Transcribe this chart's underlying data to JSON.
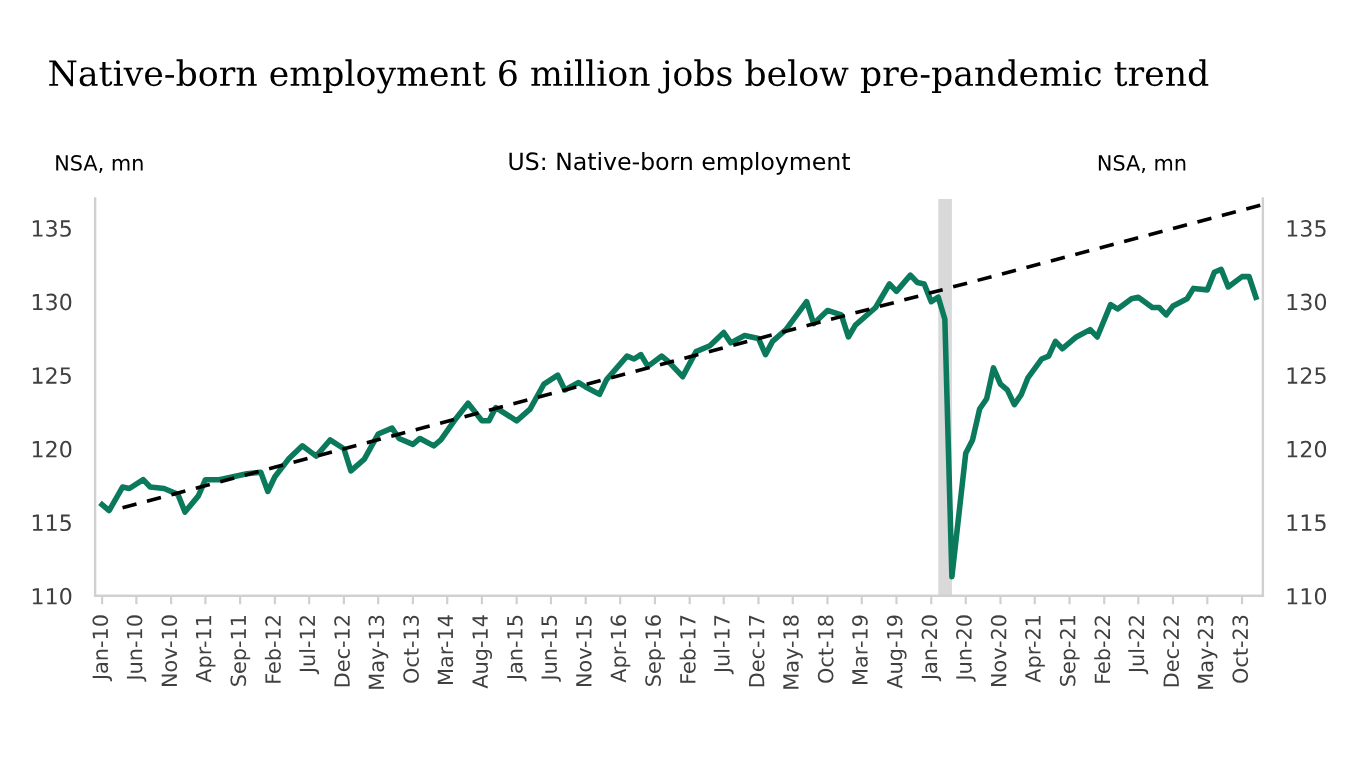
{
  "chart_data": {
    "type": "line",
    "title": "Native-born employment 6 million jobs below pre-pandemic trend",
    "subtitle": "US: Native-born employment",
    "ylabel": "NSA, mn",
    "y2label": "NSA, mn",
    "xlim": [
      "2009-12",
      "2024-01"
    ],
    "xticks": [
      {
        "value": "2010-01",
        "label": "Jan-10"
      },
      {
        "value": "2010-06",
        "label": "Jun-10"
      },
      {
        "value": "2010-11",
        "label": "Nov-10"
      },
      {
        "value": "2011-04",
        "label": "Apr-11"
      },
      {
        "value": "2011-09",
        "label": "Sep-11"
      },
      {
        "value": "2012-02",
        "label": "Feb-12"
      },
      {
        "value": "2012-07",
        "label": "Jul-12"
      },
      {
        "value": "2012-12",
        "label": "Dec-12"
      },
      {
        "value": "2013-05",
        "label": "May-13"
      },
      {
        "value": "2013-10",
        "label": "Oct-13"
      },
      {
        "value": "2014-03",
        "label": "Mar-14"
      },
      {
        "value": "2014-08",
        "label": "Aug-14"
      },
      {
        "value": "2015-01",
        "label": "Jan-15"
      },
      {
        "value": "2015-06",
        "label": "Jun-15"
      },
      {
        "value": "2015-11",
        "label": "Nov-15"
      },
      {
        "value": "2016-04",
        "label": "Apr-16"
      },
      {
        "value": "2016-09",
        "label": "Sep-16"
      },
      {
        "value": "2017-02",
        "label": "Feb-17"
      },
      {
        "value": "2017-07",
        "label": "Jul-17"
      },
      {
        "value": "2017-12",
        "label": "Dec-17"
      },
      {
        "value": "2018-05",
        "label": "May-18"
      },
      {
        "value": "2018-10",
        "label": "Oct-18"
      },
      {
        "value": "2019-03",
        "label": "Mar-19"
      },
      {
        "value": "2019-08",
        "label": "Aug-19"
      },
      {
        "value": "2020-01",
        "label": "Jan-20"
      },
      {
        "value": "2020-06",
        "label": "Jun-20"
      },
      {
        "value": "2020-11",
        "label": "Nov-20"
      },
      {
        "value": "2021-04",
        "label": "Apr-21"
      },
      {
        "value": "2021-09",
        "label": "Sep-21"
      },
      {
        "value": "2022-02",
        "label": "Feb-22"
      },
      {
        "value": "2022-07",
        "label": "Jul-22"
      },
      {
        "value": "2022-12",
        "label": "Dec-22"
      },
      {
        "value": "2023-05",
        "label": "May-23"
      },
      {
        "value": "2023-10",
        "label": "Oct-23"
      }
    ],
    "ylim": [
      110,
      137
    ],
    "yticks": [
      110,
      115,
      120,
      125,
      130,
      135
    ],
    "y2lim": [
      110,
      137
    ],
    "y2ticks": [
      110,
      115,
      120,
      125,
      130,
      135
    ],
    "grid": false,
    "legend": false,
    "bands": [
      {
        "axis": "x",
        "from": "2020-02",
        "to": "2020-04",
        "color": "#d9d9d9"
      }
    ],
    "series": [
      {
        "type": "line",
        "color": "#0b7a5c",
        "line_style": "solid",
        "x": [
          "2010-01",
          "2010-02",
          "2010-04",
          "2010-05",
          "2010-07",
          "2010-08",
          "2010-10",
          "2010-12",
          "2011-01",
          "2011-03",
          "2011-04",
          "2011-06",
          "2011-08",
          "2011-10",
          "2011-12",
          "2012-01",
          "2012-02",
          "2012-04",
          "2012-06",
          "2012-08",
          "2012-10",
          "2012-12",
          "2013-01",
          "2013-03",
          "2013-05",
          "2013-07",
          "2013-08",
          "2013-10",
          "2013-11",
          "2014-01",
          "2014-02",
          "2014-04",
          "2014-06",
          "2014-08",
          "2014-09",
          "2014-10",
          "2015-01",
          "2015-03",
          "2015-05",
          "2015-07",
          "2015-08",
          "2015-10",
          "2015-11",
          "2016-01",
          "2016-02",
          "2016-05",
          "2016-06",
          "2016-07",
          "2016-08",
          "2016-10",
          "2016-11",
          "2017-01",
          "2017-03",
          "2017-05",
          "2017-07",
          "2017-08",
          "2017-10",
          "2017-12",
          "2018-01",
          "2018-02",
          "2018-04",
          "2018-07",
          "2018-08",
          "2018-10",
          "2018-12",
          "2019-01",
          "2019-02",
          "2019-05",
          "2019-07",
          "2019-08",
          "2019-10",
          "2019-11",
          "2019-12",
          "2020-01",
          "2020-02",
          "2020-03",
          "2020-04",
          "2020-06",
          "2020-07",
          "2020-08",
          "2020-09",
          "2020-10",
          "2020-11",
          "2020-12",
          "2021-01",
          "2021-02",
          "2021-03",
          "2021-05",
          "2021-06",
          "2021-07",
          "2021-08",
          "2021-10",
          "2021-12",
          "2022-01",
          "2022-03",
          "2022-04",
          "2022-06",
          "2022-07",
          "2022-09",
          "2022-10",
          "2022-11",
          "2022-12",
          "2023-02",
          "2023-03",
          "2023-05",
          "2023-06",
          "2023-07",
          "2023-08",
          "2023-10",
          "2023-11",
          "2023-12"
        ],
        "values": [
          116.2,
          115.8,
          117.4,
          117.3,
          117.9,
          117.4,
          117.3,
          116.9,
          115.7,
          116.8,
          117.9,
          117.9,
          118.1,
          118.3,
          118.4,
          117.1,
          118.1,
          119.3,
          120.2,
          119.5,
          120.6,
          120.0,
          118.5,
          119.3,
          121.0,
          121.4,
          120.7,
          120.3,
          120.7,
          120.2,
          120.6,
          121.9,
          123.1,
          121.9,
          121.9,
          122.8,
          121.9,
          122.7,
          124.4,
          125.0,
          124.0,
          124.5,
          124.2,
          123.7,
          124.7,
          126.3,
          126.1,
          126.4,
          125.6,
          126.3,
          125.9,
          124.9,
          126.6,
          127.0,
          127.9,
          127.2,
          127.7,
          127.5,
          126.4,
          127.3,
          128.1,
          130.0,
          128.5,
          129.4,
          129.1,
          127.6,
          128.4,
          129.6,
          131.2,
          130.7,
          131.8,
          131.3,
          131.2,
          130.0,
          130.3,
          128.8,
          111.3,
          119.7,
          120.6,
          122.7,
          123.4,
          125.5,
          124.4,
          124.0,
          123.0,
          123.7,
          124.8,
          126.1,
          126.3,
          127.3,
          126.8,
          127.6,
          128.1,
          127.6,
          129.8,
          129.5,
          130.2,
          130.3,
          129.6,
          129.6,
          129.1,
          129.7,
          130.2,
          130.9,
          130.8,
          132.0,
          132.2,
          131.0,
          131.7,
          131.7,
          130.3
        ]
      },
      {
        "type": "line",
        "color": "#000000",
        "line_style": "dashed",
        "x": [
          "2010-04",
          "2024-01"
        ],
        "values": [
          116.0,
          136.6
        ]
      }
    ]
  }
}
